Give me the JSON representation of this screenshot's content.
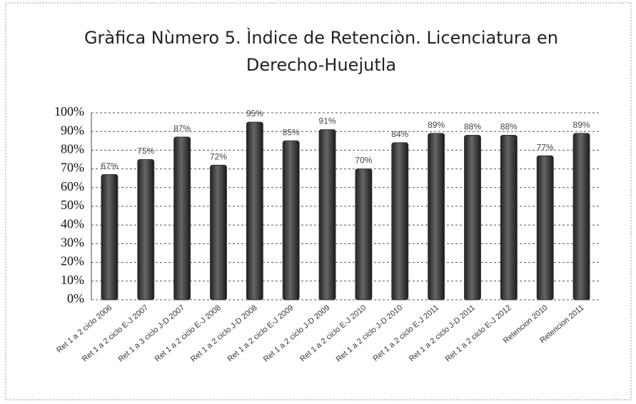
{
  "chart_data": {
    "type": "bar",
    "title": "Gràfica Nùmero 5. Ìndice de Retenciòn. Licenciatura en Derecho-Huejutla",
    "categories": [
      "Ret 1 a 2 ciclo 2006",
      "Ret 1 a 2 ciclo E-J 2007",
      "Ret 1 a 3 ciclo J-D 2007",
      "Ret 1 a 2 ciclo E-J 2008",
      "Ret 1 a 2 ciclo J-D 2008",
      "Ret 1 a 2 ciclo E-J 2009",
      "Ret 1 a 2 ciclo J-D 2009",
      "Ret 1 a 2 ciclo E-J 2010",
      "Ret 1 a 2 ciclo J-D 2010",
      "Ret 1 a 2 ciclo E-J 2011",
      "Ret 1 a 2 ciclo J-D 2011",
      "Ret 1 a 2 ciclo E-J 2012",
      "Retencion 2010",
      "Retencion 2011"
    ],
    "values": [
      67,
      75,
      87,
      72,
      95,
      85,
      91,
      70,
      84,
      89,
      88,
      88,
      77,
      89
    ],
    "value_labels": [
      "67%",
      "75%",
      "87%",
      "72%",
      "95%",
      "85%",
      "91%",
      "70%",
      "84%",
      "89%",
      "88%",
      "88%",
      "77%",
      "89%"
    ],
    "color": "#333333",
    "ylim": [
      0,
      100
    ],
    "yticks": [
      {
        "value": 0,
        "label": "0%"
      },
      {
        "value": 10,
        "label": "10%"
      },
      {
        "value": 20,
        "label": "20%"
      },
      {
        "value": 30,
        "label": "30%"
      },
      {
        "value": 40,
        "label": "40%"
      },
      {
        "value": 50,
        "label": "50%"
      },
      {
        "value": 60,
        "label": "60%"
      },
      {
        "value": 70,
        "label": "70%"
      },
      {
        "value": 80,
        "label": "80%"
      },
      {
        "value": 90,
        "label": "90%"
      },
      {
        "value": 100,
        "label": "100%"
      }
    ],
    "grid": true
  }
}
